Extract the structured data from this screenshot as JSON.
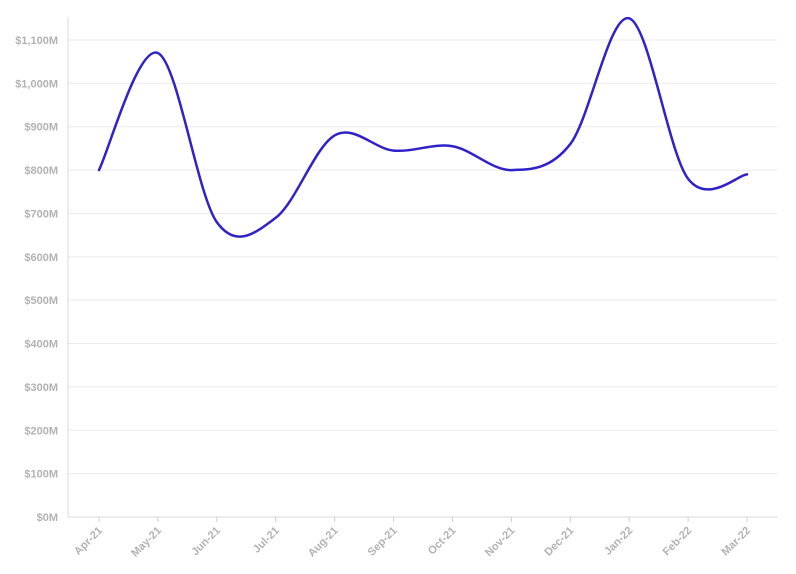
{
  "chart_data": {
    "type": "line",
    "x": [
      "Apr-21",
      "May-21",
      "Jun-21",
      "Jul-21",
      "Aug-21",
      "Sep-21",
      "Oct-21",
      "Nov-21",
      "Dec-21",
      "Jan-22",
      "Feb-22",
      "Mar-22"
    ],
    "series": [
      {
        "values": [
          800,
          1070,
          680,
          690,
          880,
          845,
          855,
          800,
          860,
          1150,
          780,
          790
        ]
      }
    ],
    "y_ticks": [
      "$0M",
      "$100M",
      "$200M",
      "$300M",
      "$400M",
      "$500M",
      "$600M",
      "$700M",
      "$800M",
      "$900M",
      "$1,000M",
      "$1,100M"
    ],
    "ylim": [
      0,
      1100
    ],
    "grid": true,
    "legend": "none",
    "line_color": "#2f22c8"
  }
}
